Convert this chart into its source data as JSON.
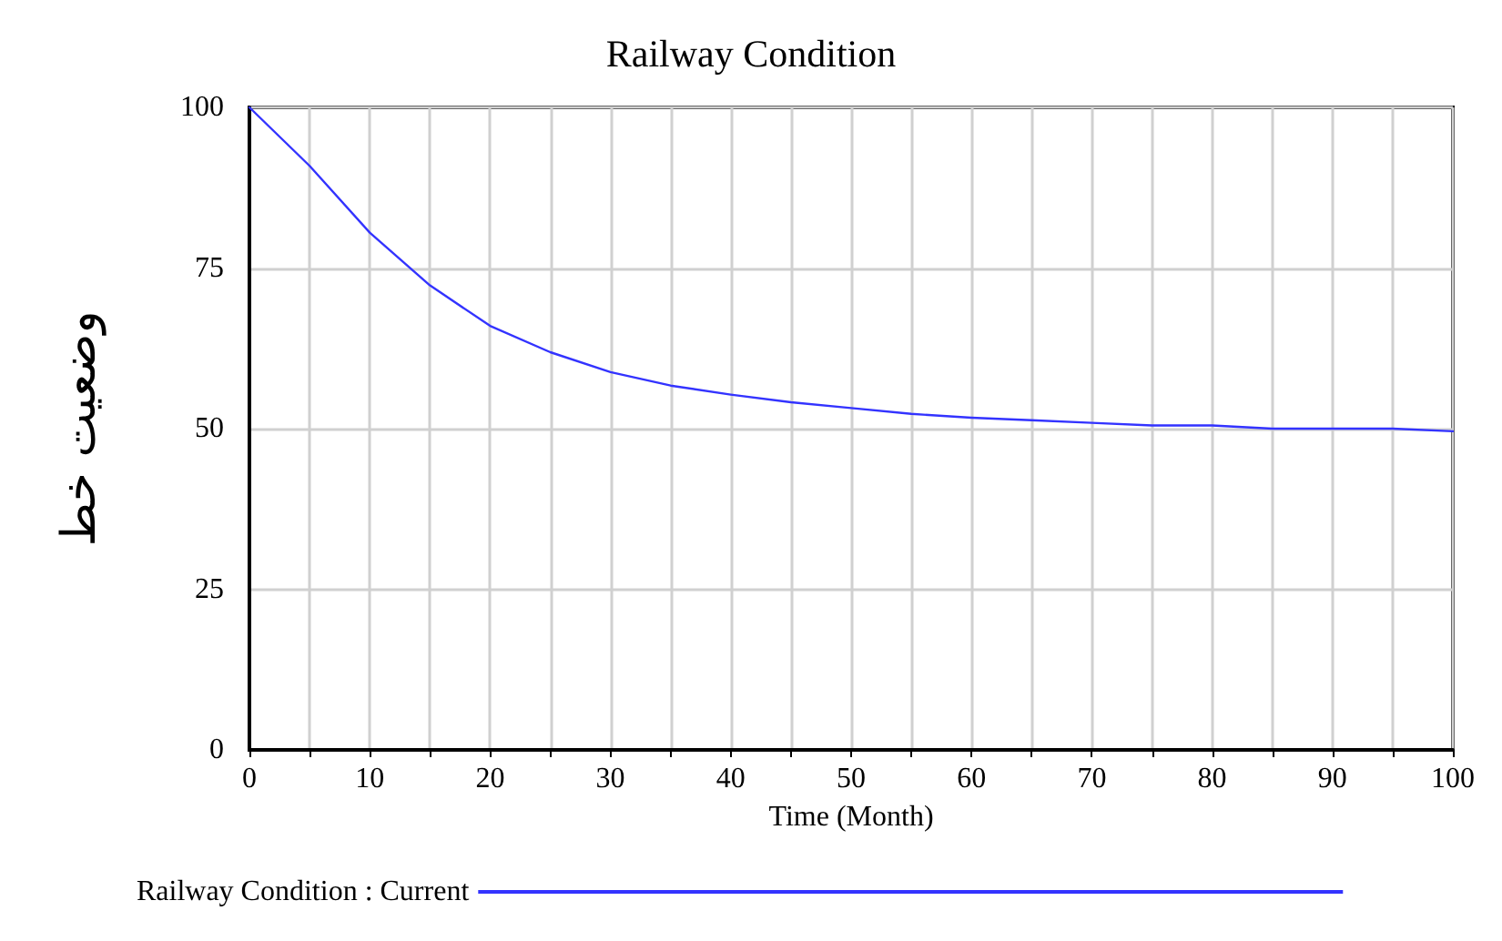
{
  "chart_data": {
    "type": "line",
    "title": "Railway Condition",
    "xlabel": "Time (Month)",
    "ylabel": "وضعیت خط",
    "x": [
      0,
      5,
      10,
      15,
      20,
      25,
      30,
      35,
      40,
      45,
      50,
      55,
      60,
      65,
      70,
      75,
      80,
      85,
      90,
      95,
      100
    ],
    "series": [
      {
        "name": "Railway Condition : Current",
        "color": "#3333ff",
        "values": [
          100,
          90.9,
          80.5,
          72.3,
          66,
          61.9,
          58.8,
          56.7,
          55.3,
          54.1,
          53.2,
          52.3,
          51.7,
          51.3,
          50.9,
          50.5,
          50.5,
          50,
          50,
          50,
          49.6
        ]
      }
    ],
    "xlim": [
      0,
      100
    ],
    "xticks": [
      0,
      {
        "value": 5,
        "label": null
      },
      10,
      {
        "value": 15,
        "label": null
      },
      20,
      {
        "value": 25,
        "label": null
      },
      30,
      {
        "value": 35,
        "label": null
      },
      40,
      {
        "value": 45,
        "label": null
      },
      50,
      {
        "value": 55,
        "label": null
      },
      60,
      {
        "value": 65,
        "label": null
      },
      70,
      {
        "value": 75,
        "label": null
      },
      80,
      {
        "value": 85,
        "label": null
      },
      90,
      {
        "value": 95,
        "label": null
      },
      100
    ],
    "ylim": [
      0,
      100
    ],
    "yticks": [
      0,
      25,
      50,
      75,
      100
    ],
    "grid": true,
    "legend": "bottom left",
    "marker": "none",
    "line_style": "solid"
  }
}
